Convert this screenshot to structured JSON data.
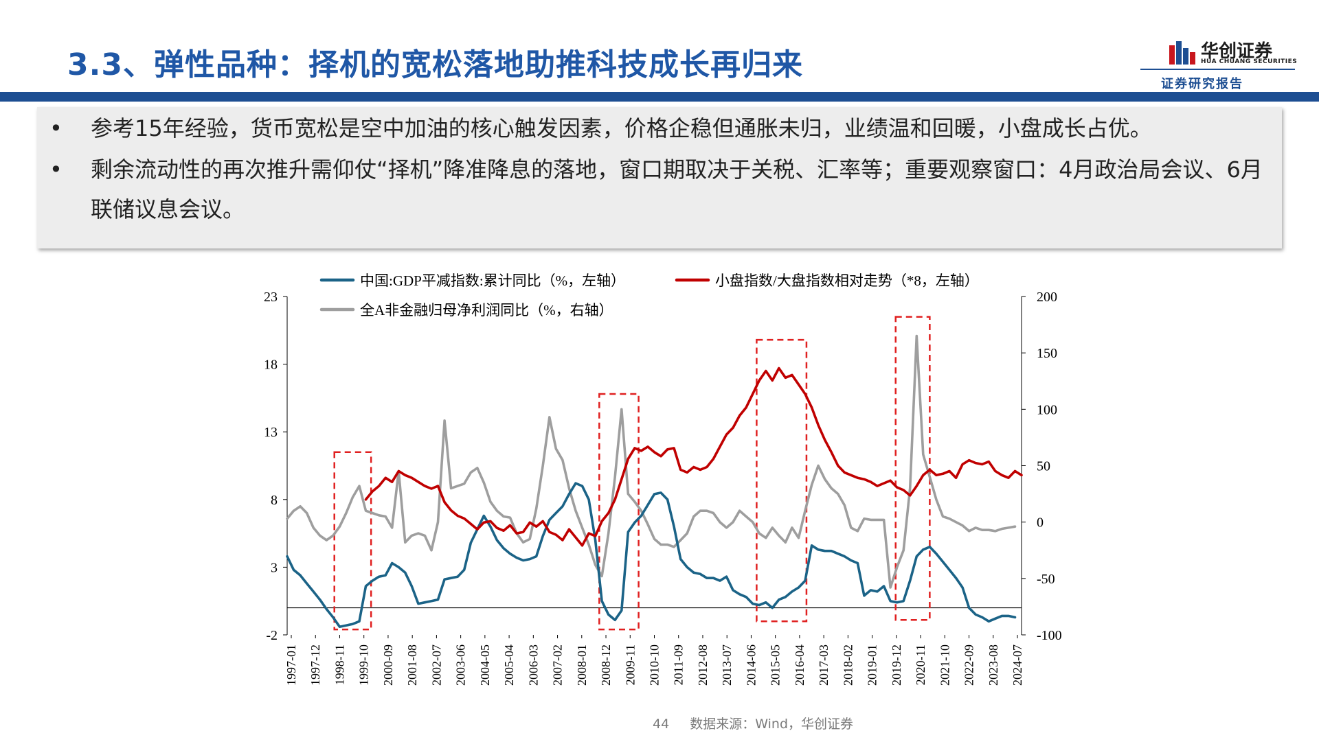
{
  "header": {
    "title": "3.3、弹性品种：择机的宽松落地助推科技成长再归来",
    "logo_cn": "华创证券",
    "logo_en": "HUA CHUANG SECURITIES",
    "report_tag": "证券研究报告"
  },
  "bullets": [
    "参考15年经验，货币宽松是空中加油的核心触发因素，价格企稳但通胀未归，业绩温和回暖，小盘成长占优。",
    "剩余流动性的再次推升需仰仗“择机”降准降息的落地，窗口期取决于关税、汇率等；重要观察窗口：4月政治局会议、6月联储议息会议。"
  ],
  "bullet_marker": "•",
  "footer": {
    "page_number": "44",
    "source": "数据来源：Wind，华创证券"
  },
  "colors": {
    "title": "#1f57a6",
    "brand_bar": "#1d4e92",
    "series_gdp": "#1b6387",
    "series_small": "#c00000",
    "series_profit": "#9e9e9e",
    "highlight_box": "#e02020"
  },
  "chart_data": {
    "type": "line",
    "title": "",
    "xlabel": "",
    "x_tick_labels": [
      "1997-01",
      "1997-12",
      "1998-11",
      "1999-10",
      "2000-09",
      "2001-08",
      "2002-07",
      "2003-06",
      "2004-05",
      "2005-04",
      "2006-03",
      "2007-02",
      "2008-01",
      "2008-12",
      "2009-11",
      "2010-10",
      "2011-09",
      "2012-08",
      "2013-07",
      "2014-06",
      "2015-05",
      "2016-04",
      "2017-03",
      "2018-02",
      "2019-01",
      "2019-12",
      "2020-11",
      "2021-10",
      "2022-09",
      "2023-08",
      "2024-07"
    ],
    "x_range": [
      1997.0,
      2025.0
    ],
    "y_left": {
      "range": [
        -2,
        23
      ],
      "ticks": [
        "23",
        "18",
        "13",
        "8",
        "3",
        "-2"
      ],
      "tick_values": [
        23,
        18,
        13,
        8,
        3,
        -2
      ]
    },
    "y_right": {
      "range": [
        -100,
        200
      ],
      "ticks": [
        "200",
        "150",
        "100",
        "50",
        "0",
        "-50",
        "-100"
      ],
      "tick_values": [
        200,
        150,
        100,
        50,
        0,
        -50,
        -100
      ]
    },
    "zero_line_left": 0,
    "legend": [
      {
        "name": "中国:GDP平减指数:累计同比（%，左轴）",
        "color": "#1b6387"
      },
      {
        "name": "小盘指数/大盘指数相对走势（*8，左轴）",
        "color": "#c00000"
      },
      {
        "name": "全A非金融归母净利润同比（%，右轴）",
        "color": "#9e9e9e"
      }
    ],
    "legend_placement": "top",
    "series": [
      {
        "name": "中国:GDP平减指数:累计同比（%，左轴）",
        "axis": "left",
        "x": [
          1997.0,
          1997.25,
          1997.5,
          1997.75,
          1998.0,
          1998.25,
          1998.5,
          1998.75,
          1999.0,
          1999.25,
          1999.5,
          1999.75,
          2000.0,
          2000.25,
          2000.5,
          2000.75,
          2001.0,
          2001.25,
          2001.5,
          2001.75,
          2002.0,
          2002.25,
          2002.5,
          2002.75,
          2003.0,
          2003.25,
          2003.5,
          2003.75,
          2004.0,
          2004.25,
          2004.5,
          2004.75,
          2005.0,
          2005.25,
          2005.5,
          2005.75,
          2006.0,
          2006.25,
          2006.5,
          2006.75,
          2007.0,
          2007.25,
          2007.5,
          2007.75,
          2008.0,
          2008.25,
          2008.5,
          2008.75,
          2009.0,
          2009.25,
          2009.5,
          2009.75,
          2010.0,
          2010.25,
          2010.5,
          2010.75,
          2011.0,
          2011.25,
          2011.5,
          2011.75,
          2012.0,
          2012.25,
          2012.5,
          2012.75,
          2013.0,
          2013.25,
          2013.5,
          2013.75,
          2014.0,
          2014.25,
          2014.5,
          2014.75,
          2015.0,
          2015.25,
          2015.5,
          2015.75,
          2016.0,
          2016.25,
          2016.5,
          2016.75,
          2017.0,
          2017.25,
          2017.5,
          2017.75,
          2018.0,
          2018.25,
          2018.5,
          2018.75,
          2019.0,
          2019.25,
          2019.5,
          2019.75,
          2020.0,
          2020.25,
          2020.5,
          2020.75,
          2021.0,
          2021.25,
          2021.5,
          2021.75,
          2022.0,
          2022.25,
          2022.5,
          2022.75,
          2023.0,
          2023.25,
          2023.5,
          2023.75,
          2024.0,
          2024.25,
          2024.5,
          2024.75
        ],
        "values": [
          3.8,
          2.8,
          2.4,
          1.8,
          1.2,
          0.6,
          -0.1,
          -0.7,
          -1.4,
          -1.3,
          -1.2,
          -1.0,
          1.6,
          2.0,
          2.3,
          2.4,
          3.3,
          3.0,
          2.6,
          1.6,
          0.3,
          0.4,
          0.5,
          0.6,
          2.1,
          2.2,
          2.3,
          2.8,
          4.8,
          5.8,
          6.8,
          6.0,
          5.0,
          4.4,
          4.0,
          3.7,
          3.5,
          3.6,
          3.8,
          5.3,
          6.5,
          7.0,
          7.5,
          8.4,
          9.2,
          9.0,
          8.0,
          5.0,
          0.5,
          -0.5,
          -0.9,
          -0.2,
          5.6,
          6.3,
          6.8,
          7.6,
          8.4,
          8.5,
          8.0,
          6.0,
          3.6,
          3.0,
          2.6,
          2.5,
          2.2,
          2.2,
          2.0,
          2.3,
          1.3,
          1.0,
          0.8,
          0.3,
          0.2,
          0.4,
          0.0,
          0.6,
          0.8,
          1.2,
          1.5,
          2.0,
          4.6,
          4.3,
          4.2,
          4.2,
          4.0,
          3.8,
          3.5,
          3.3,
          0.9,
          1.3,
          1.2,
          1.6,
          0.5,
          0.4,
          0.5,
          2.0,
          3.8,
          4.3,
          4.5,
          4.0,
          3.4,
          2.8,
          2.2,
          1.5,
          0.0,
          -0.5,
          -0.7,
          -1.0,
          -0.8,
          -0.6,
          -0.6,
          -0.7
        ]
      },
      {
        "name": "小盘指数/大盘指数相对走势（*8，左轴）",
        "axis": "left",
        "x": [
          2000.0,
          2000.25,
          2000.5,
          2000.75,
          2001.0,
          2001.25,
          2001.5,
          2001.75,
          2002.0,
          2002.25,
          2002.5,
          2002.75,
          2003.0,
          2003.25,
          2003.5,
          2003.75,
          2004.0,
          2004.25,
          2004.5,
          2004.75,
          2005.0,
          2005.25,
          2005.5,
          2005.75,
          2006.0,
          2006.25,
          2006.5,
          2006.75,
          2007.0,
          2007.25,
          2007.5,
          2007.75,
          2008.0,
          2008.25,
          2008.5,
          2008.75,
          2009.0,
          2009.25,
          2009.5,
          2009.75,
          2010.0,
          2010.25,
          2010.5,
          2010.75,
          2011.0,
          2011.25,
          2011.5,
          2011.75,
          2012.0,
          2012.25,
          2012.5,
          2012.75,
          2013.0,
          2013.25,
          2013.5,
          2013.75,
          2014.0,
          2014.25,
          2014.5,
          2014.75,
          2015.0,
          2015.25,
          2015.5,
          2015.75,
          2016.0,
          2016.25,
          2016.5,
          2016.75,
          2017.0,
          2017.25,
          2017.5,
          2017.75,
          2018.0,
          2018.25,
          2018.5,
          2018.75,
          2019.0,
          2019.25,
          2019.5,
          2019.75,
          2020.0,
          2020.25,
          2020.5,
          2020.75,
          2021.0,
          2021.25,
          2021.5,
          2021.75,
          2022.0,
          2022.25,
          2022.5,
          2022.75,
          2023.0,
          2023.25,
          2023.5,
          2023.75,
          2024.0,
          2024.25,
          2024.5,
          2024.75,
          2025.0
        ],
        "values": [
          8.0,
          8.6,
          9.0,
          9.6,
          9.3,
          10.1,
          9.8,
          9.6,
          9.3,
          9.0,
          8.8,
          9.0,
          7.8,
          7.2,
          6.8,
          6.6,
          6.2,
          5.8,
          6.3,
          6.4,
          5.9,
          5.7,
          6.1,
          5.5,
          5.6,
          6.3,
          6.0,
          6.4,
          5.6,
          5.4,
          5.0,
          5.8,
          5.2,
          4.6,
          5.5,
          5.3,
          6.4,
          7.0,
          8.0,
          9.5,
          11.0,
          11.8,
          11.6,
          11.9,
          11.5,
          11.2,
          11.7,
          11.8,
          10.2,
          10.0,
          10.4,
          10.2,
          10.4,
          11.0,
          11.9,
          12.8,
          13.3,
          14.2,
          14.8,
          15.8,
          16.8,
          17.5,
          16.8,
          17.7,
          17.0,
          17.2,
          16.5,
          15.8,
          14.8,
          13.5,
          12.4,
          11.5,
          10.5,
          10.0,
          9.8,
          9.6,
          9.5,
          9.3,
          9.0,
          9.2,
          9.4,
          8.9,
          8.7,
          8.3,
          9.0,
          9.8,
          10.2,
          9.8,
          9.9,
          10.1,
          9.6,
          10.6,
          10.9,
          10.7,
          10.6,
          10.8,
          10.1,
          9.8,
          9.6,
          10.1,
          9.8
        ]
      },
      {
        "name": "全A非金融归母净利润同比（%，右轴）",
        "axis": "right",
        "x": [
          1997.0,
          1997.25,
          1997.5,
          1997.75,
          1998.0,
          1998.25,
          1998.5,
          1998.75,
          1999.0,
          1999.25,
          1999.5,
          1999.75,
          2000.0,
          2000.25,
          2000.5,
          2000.75,
          2001.0,
          2001.25,
          2001.5,
          2001.75,
          2002.0,
          2002.25,
          2002.5,
          2002.75,
          2003.0,
          2003.25,
          2003.5,
          2003.75,
          2004.0,
          2004.25,
          2004.5,
          2004.75,
          2005.0,
          2005.25,
          2005.5,
          2005.75,
          2006.0,
          2006.25,
          2006.5,
          2006.75,
          2007.0,
          2007.25,
          2007.5,
          2007.75,
          2008.0,
          2008.25,
          2008.5,
          2008.75,
          2009.0,
          2009.25,
          2009.5,
          2009.75,
          2010.0,
          2010.25,
          2010.5,
          2010.75,
          2011.0,
          2011.25,
          2011.5,
          2011.75,
          2012.0,
          2012.25,
          2012.5,
          2012.75,
          2013.0,
          2013.25,
          2013.5,
          2013.75,
          2014.0,
          2014.25,
          2014.5,
          2014.75,
          2015.0,
          2015.25,
          2015.5,
          2015.75,
          2016.0,
          2016.25,
          2016.5,
          2016.75,
          2017.0,
          2017.25,
          2017.5,
          2017.75,
          2018.0,
          2018.25,
          2018.5,
          2018.75,
          2019.0,
          2019.25,
          2019.5,
          2019.75,
          2020.0,
          2020.25,
          2020.5,
          2020.75,
          2021.0,
          2021.25,
          2021.5,
          2021.75,
          2022.0,
          2022.25,
          2022.5,
          2022.75,
          2023.0,
          2023.25,
          2023.5,
          2023.75,
          2024.0,
          2024.25,
          2024.5,
          2024.75
        ],
        "values": [
          3,
          10,
          14,
          8,
          -5,
          -12,
          -16,
          -12,
          -4,
          8,
          22,
          32,
          10,
          8,
          6,
          5,
          -5,
          45,
          -18,
          -12,
          -10,
          -12,
          -25,
          0,
          90,
          30,
          32,
          34,
          44,
          48,
          35,
          18,
          10,
          5,
          4,
          -10,
          -18,
          -15,
          12,
          50,
          93,
          65,
          55,
          30,
          10,
          -5,
          -20,
          -38,
          -48,
          -10,
          40,
          100,
          25,
          18,
          10,
          -2,
          -15,
          -20,
          -20,
          -22,
          -16,
          -10,
          5,
          10,
          10,
          8,
          0,
          -5,
          0,
          10,
          5,
          0,
          -10,
          -14,
          -5,
          -12,
          -18,
          -5,
          -14,
          10,
          33,
          50,
          38,
          30,
          25,
          15,
          -5,
          -8,
          3,
          2,
          2,
          2,
          -58,
          -40,
          -25,
          30,
          165,
          60,
          40,
          20,
          5,
          3,
          0,
          -3,
          -8,
          -5,
          -7,
          -7,
          -8,
          -6,
          -5,
          -4
        ]
      }
    ],
    "highlight_windows": [
      {
        "x_start": 1998.8,
        "x_end": 2000.2,
        "y_top": 11.5,
        "y_bottom": -1.6
      },
      {
        "x_start": 2008.9,
        "x_end": 2010.4,
        "y_top": 15.8,
        "y_bottom": -1.6
      },
      {
        "x_start": 2014.9,
        "x_end": 2016.8,
        "y_top": 19.8,
        "y_bottom": -1.0
      },
      {
        "x_start": 2020.2,
        "x_end": 2021.5,
        "y_top": 21.5,
        "y_bottom": -0.9
      }
    ]
  }
}
